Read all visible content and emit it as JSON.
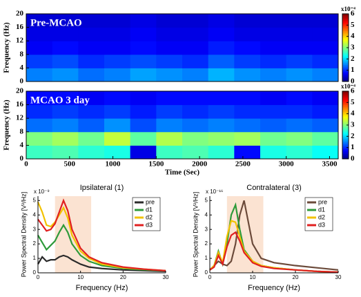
{
  "chart_data": [
    {
      "type": "heatmap",
      "title": "Pre-MCAO",
      "y_label": "Frequency (Hz)",
      "colorbar_label": "x10⁻⁴",
      "xbins": [
        0,
        300,
        600,
        900,
        1200,
        1500,
        1800,
        2100,
        2400,
        2700,
        3000,
        3300,
        3600
      ],
      "ybins": [
        0,
        4,
        8,
        12,
        16,
        20
      ],
      "values": [
        [
          1.5,
          1.6,
          1.4,
          1.5,
          1.7,
          1.6,
          1.5,
          1.8,
          1.6,
          1.5,
          1.6,
          1.5
        ],
        [
          1.1,
          1.2,
          1.0,
          1.1,
          1.2,
          1.1,
          1.0,
          1.3,
          1.1,
          1.0,
          1.1,
          1.0
        ],
        [
          0.7,
          0.8,
          0.7,
          0.7,
          0.8,
          0.7,
          0.7,
          0.9,
          0.8,
          0.7,
          0.7,
          0.7
        ],
        [
          0.6,
          0.6,
          0.6,
          0.6,
          0.7,
          0.6,
          0.6,
          0.7,
          0.6,
          0.6,
          0.6,
          0.6
        ],
        [
          0.5,
          0.5,
          0.5,
          0.5,
          0.6,
          0.5,
          0.5,
          0.6,
          0.5,
          0.5,
          0.5,
          0.5
        ]
      ],
      "xlim": [
        0,
        3600
      ],
      "ylim": [
        0,
        20
      ],
      "yticks": [
        0,
        4,
        8,
        12,
        16,
        20
      ],
      "clim": [
        0,
        6
      ],
      "cticks": [
        0,
        1,
        2,
        3,
        4,
        5,
        6
      ]
    },
    {
      "type": "heatmap",
      "title": "MCAO  3 day",
      "y_label": "Frequency (Hz)",
      "x_label": "Time (Sec)",
      "colorbar_label": "x10⁻⁴",
      "xbins": [
        0,
        300,
        600,
        900,
        1200,
        1500,
        1800,
        2100,
        2400,
        2700,
        3000,
        3300,
        3600
      ],
      "ybins": [
        0,
        4,
        8,
        12,
        16,
        20
      ],
      "values": [
        [
          2.6,
          2.7,
          2.5,
          2.4,
          0.6,
          2.6,
          2.7,
          2.5,
          0.8,
          2.4,
          2.5,
          2.3
        ],
        [
          3.0,
          3.2,
          2.9,
          3.4,
          2.8,
          3.3,
          3.0,
          3.1,
          3.2,
          2.9,
          3.0,
          2.8
        ],
        [
          1.4,
          1.5,
          1.3,
          1.6,
          1.2,
          1.5,
          1.4,
          1.5,
          1.4,
          1.3,
          1.4,
          1.3
        ],
        [
          1.0,
          1.1,
          1.0,
          1.1,
          0.9,
          1.1,
          1.0,
          1.1,
          1.0,
          1.0,
          1.0,
          0.9
        ],
        [
          0.8,
          0.8,
          0.7,
          0.8,
          0.7,
          0.8,
          0.8,
          0.8,
          0.8,
          0.7,
          0.8,
          0.7
        ]
      ],
      "xlim": [
        0,
        3600
      ],
      "ylim": [
        0,
        20
      ],
      "xticks": [
        0,
        500,
        1000,
        1500,
        2000,
        2500,
        3000,
        3500
      ],
      "yticks": [
        0,
        4,
        8,
        12,
        16,
        20
      ],
      "clim": [
        0,
        6
      ],
      "cticks": [
        0,
        1,
        2,
        3,
        4,
        5,
        6
      ]
    },
    {
      "type": "line",
      "title": "Ipsilateral (1)",
      "x_label": "Frequency (Hz)",
      "y_label": "Power Spectral Density [V²/Hz]",
      "y_multiplier": "x 10⁻⁹",
      "shaded_range": [
        4,
        12.5
      ],
      "shade_color": "#fbe3d2",
      "legend": "upper right",
      "x": [
        0,
        1,
        2,
        3,
        4,
        5,
        6,
        7,
        8,
        10,
        12,
        15,
        20,
        25,
        30
      ],
      "series": [
        {
          "name": "pre",
          "color": "#2a2a2a",
          "values": [
            0.6,
            1.1,
            0.8,
            0.9,
            0.9,
            1.1,
            1.2,
            1.1,
            0.9,
            0.6,
            0.4,
            0.3,
            0.2,
            0.15,
            0.1
          ]
        },
        {
          "name": "d1",
          "color": "#2e9a3a",
          "values": [
            2.6,
            2.1,
            1.6,
            1.9,
            2.2,
            2.8,
            3.3,
            2.8,
            2.0,
            1.2,
            0.8,
            0.5,
            0.3,
            0.2,
            0.15
          ]
        },
        {
          "name": "d2",
          "color": "#f2c200",
          "values": [
            4.9,
            4.2,
            3.3,
            3.2,
            3.5,
            4.0,
            4.5,
            3.8,
            2.6,
            1.5,
            1.0,
            0.6,
            0.35,
            0.25,
            0.15
          ]
        },
        {
          "name": "d3",
          "color": "#e02020",
          "values": [
            3.7,
            3.3,
            2.9,
            3.0,
            3.4,
            4.2,
            5.0,
            4.3,
            3.0,
            1.7,
            1.1,
            0.7,
            0.4,
            0.25,
            0.15
          ]
        }
      ],
      "xlim": [
        0,
        30
      ],
      "ylim": [
        0,
        5.3
      ],
      "xticks": [
        0,
        10,
        20,
        30
      ],
      "yticks": [
        0,
        1,
        2,
        3,
        4,
        5
      ]
    },
    {
      "type": "line",
      "title": "Contralateral (3)",
      "x_label": "Frequency (Hz)",
      "y_label": "Power Spectral Density [V²/Hz]",
      "y_multiplier": "x 10⁻¹⁶",
      "shaded_range": [
        4,
        12.5
      ],
      "shade_color": "#fbe3d2",
      "legend": "upper right",
      "x": [
        0,
        1,
        2,
        3,
        4,
        5,
        6,
        7,
        8,
        10,
        12,
        15,
        20,
        25,
        30
      ],
      "series": [
        {
          "name": "pre",
          "color": "#6b4a3a",
          "values": [
            0.2,
            0.5,
            0.8,
            0.6,
            0.5,
            0.8,
            2.0,
            4.0,
            5.0,
            2.0,
            1.0,
            0.7,
            0.5,
            0.35,
            0.2
          ]
        },
        {
          "name": "d1",
          "color": "#2e9a3a",
          "values": [
            0.2,
            0.5,
            1.5,
            0.6,
            2.0,
            4.0,
            4.7,
            3.0,
            1.6,
            0.8,
            0.5,
            0.35,
            0.2,
            0.1,
            0.05
          ]
        },
        {
          "name": "d2",
          "color": "#f2c200",
          "values": [
            0.2,
            0.5,
            1.4,
            0.7,
            2.5,
            3.6,
            3.5,
            2.5,
            1.5,
            0.8,
            0.5,
            0.35,
            0.2,
            0.1,
            0.05
          ]
        },
        {
          "name": "d3",
          "color": "#e02020",
          "values": [
            0.2,
            0.4,
            1.2,
            0.6,
            1.8,
            2.6,
            2.8,
            2.2,
            1.4,
            0.7,
            0.45,
            0.3,
            0.2,
            0.1,
            0.05
          ]
        }
      ],
      "xlim": [
        0,
        30
      ],
      "ylim": [
        0,
        5.3
      ],
      "xticks": [
        0,
        10,
        20,
        30
      ],
      "yticks": [
        0,
        1,
        2,
        3,
        4,
        5
      ]
    }
  ]
}
